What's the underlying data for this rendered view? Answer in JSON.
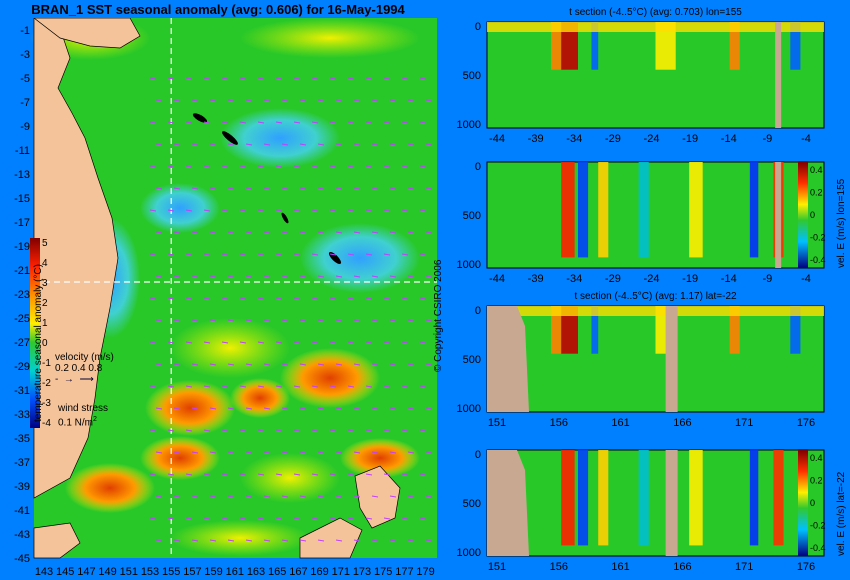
{
  "title": "BRAN_1 SST seasonal anomaly (avg: 0.606) for 16-May-1994",
  "copyright": "© Copyright CSIRO 2006",
  "map": {
    "lat_ticks": [
      "-1",
      "-3",
      "-5",
      "-7",
      "-9",
      "-11",
      "-13",
      "-15",
      "-17",
      "-19",
      "-21",
      "-23",
      "-25",
      "-27",
      "-29",
      "-31",
      "-33",
      "-35",
      "-37",
      "-39",
      "-41",
      "-43",
      "-45"
    ],
    "lon_ticks": [
      "143",
      "145",
      "147",
      "149",
      "151",
      "153",
      "155",
      "157",
      "159",
      "161",
      "163",
      "165",
      "167",
      "169",
      "171",
      "173",
      "175",
      "177",
      "179"
    ],
    "colorbar_label": "temperature seasonal anomaly (°C)",
    "colorbar_ticks": [
      "5",
      "4",
      "3",
      "2",
      "1",
      "0",
      "-1",
      "-2",
      "-3",
      "-4"
    ],
    "velocity_title": "velocity (m/s)",
    "velocity_values": "0.2 0.4 0.8",
    "wind_title": "wind stress",
    "wind_value": "0.1 N/m",
    "wind_sup": "2",
    "section_lon": 155,
    "section_lat": -22
  },
  "chart_data": [
    {
      "type": "heatmap",
      "title": "t section (-4..5°C) (avg: 0.703) lon=155",
      "xticks": [
        "-44",
        "-39",
        "-34",
        "-29",
        "-24",
        "-19",
        "-14",
        "-9",
        "-4"
      ],
      "yticks": [
        "0",
        "500",
        "1000"
      ]
    },
    {
      "type": "heatmap",
      "title": "",
      "xticks": [
        "-44",
        "-39",
        "-34",
        "-29",
        "-24",
        "-19",
        "-14",
        "-9",
        "-4"
      ],
      "yticks": [
        "0",
        "500",
        "1000"
      ],
      "colorbar_label": "vel. E (m/s) lon=155",
      "colorbar_ticks": [
        "0.4",
        "0.2",
        "0",
        "-0.2",
        "-0.4"
      ]
    },
    {
      "type": "heatmap",
      "title": "t section (-4..5°C) (avg: 1.17) lat=-22",
      "xticks": [
        "151",
        "156",
        "161",
        "166",
        "171",
        "176"
      ],
      "yticks": [
        "0",
        "500",
        "1000"
      ]
    },
    {
      "type": "heatmap",
      "title": "",
      "xticks": [
        "151",
        "156",
        "161",
        "166",
        "171",
        "176"
      ],
      "yticks": [
        "0",
        "500",
        "1000"
      ],
      "colorbar_label": "vel. E (m/s) lat=-22",
      "colorbar_ticks": [
        "0.4",
        "0.2",
        "0",
        "-0.2",
        "-0.4"
      ]
    }
  ]
}
